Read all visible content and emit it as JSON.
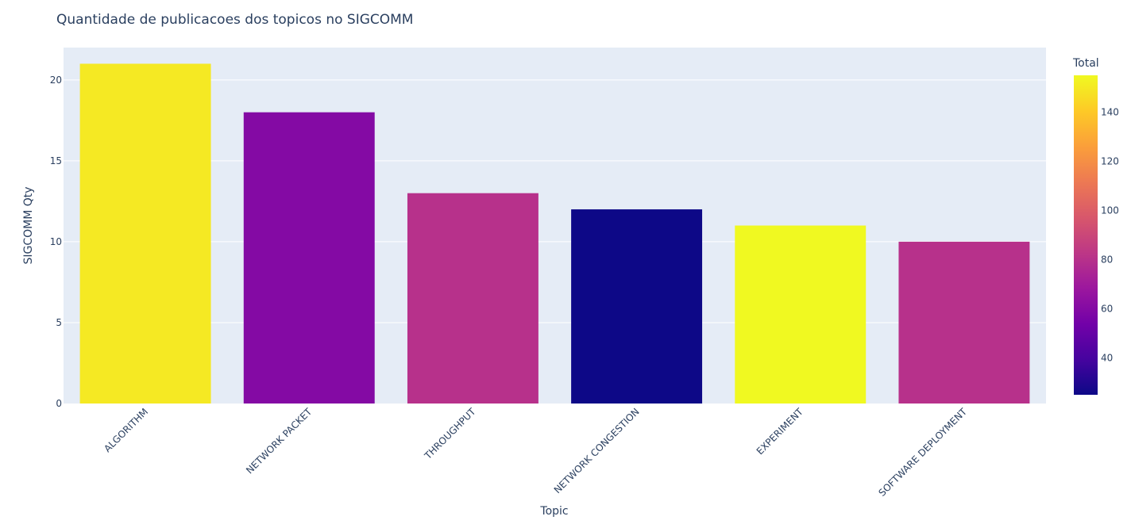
{
  "chart_data": {
    "type": "bar",
    "title": "Quantidade de publicacoes dos topicos no SIGCOMM",
    "xlabel": "Topic",
    "ylabel": "SIGCOMM Qty",
    "categories": [
      "ALGORITHM",
      "NETWORK PACKET",
      "THROUGHPUT",
      "NETWORK CONGESTION",
      "EXPERIMENT",
      "SOFTWARE DEPLOYMENT"
    ],
    "values": [
      21,
      18,
      13,
      12,
      11,
      10
    ],
    "color_values": [
      150,
      60,
      80,
      25,
      155,
      80
    ],
    "ylim": [
      0,
      22
    ],
    "yticks": [
      0,
      5,
      10,
      15,
      20
    ],
    "grid": true,
    "colorbar": {
      "title": "Total",
      "range": [
        25,
        155
      ],
      "ticks": [
        40,
        60,
        80,
        100,
        120,
        140
      ],
      "colormap": "plasma"
    }
  },
  "colors": {
    "plot_bg": "#e5ecf6",
    "grid": "#ffffff",
    "text": "#2a3f5f",
    "plasma": [
      "#0d0887",
      "#46039f",
      "#7201a8",
      "#9c179e",
      "#bd3786",
      "#d8576b",
      "#ed7953",
      "#fb9f3a",
      "#fdca26",
      "#f0f921"
    ]
  }
}
